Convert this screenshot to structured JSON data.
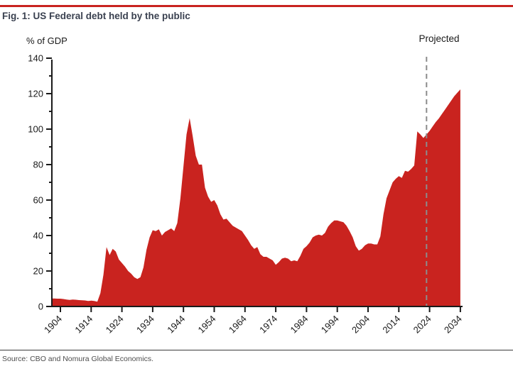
{
  "page": {
    "title": "Fig. 1: US Federal debt held by the public",
    "source": "Source: CBO and Nomura Global Economics.",
    "accent_color": "#c9231f"
  },
  "chart_data": {
    "type": "area",
    "title": "Fig. 1: US Federal debt held by the public",
    "ylabel": "% of GDP",
    "xlabel": "",
    "annotation": "Projected",
    "projected_line_year": 2023,
    "series_name": "US federal debt held by the public (% of GDP)",
    "fill_color": "#c9231f",
    "grid": false,
    "legend_position": "none",
    "ylim": [
      0,
      140
    ],
    "ytick_step": 20,
    "ytick_minor_step": 10,
    "xticks": [
      1904,
      1914,
      1924,
      1934,
      1944,
      1954,
      1964,
      1974,
      1984,
      1994,
      2004,
      2014,
      2024,
      2034
    ],
    "points": [
      [
        1901,
        4.5
      ],
      [
        1902,
        4.5
      ],
      [
        1903,
        4.4
      ],
      [
        1904,
        4.4
      ],
      [
        1905,
        4.2
      ],
      [
        1906,
        3.9
      ],
      [
        1907,
        3.7
      ],
      [
        1908,
        3.9
      ],
      [
        1909,
        3.8
      ],
      [
        1910,
        3.6
      ],
      [
        1911,
        3.5
      ],
      [
        1912,
        3.4
      ],
      [
        1913,
        3.1
      ],
      [
        1914,
        3.3
      ],
      [
        1915,
        3.1
      ],
      [
        1916,
        2.7
      ],
      [
        1917,
        7.5
      ],
      [
        1918,
        18.0
      ],
      [
        1919,
        33.5
      ],
      [
        1920,
        29.0
      ],
      [
        1921,
        32.5
      ],
      [
        1922,
        31.0
      ],
      [
        1923,
        26.5
      ],
      [
        1924,
        24.5
      ],
      [
        1925,
        22.5
      ],
      [
        1926,
        20.0
      ],
      [
        1927,
        18.5
      ],
      [
        1928,
        16.5
      ],
      [
        1929,
        15.5
      ],
      [
        1930,
        16.5
      ],
      [
        1931,
        22.0
      ],
      [
        1932,
        32.0
      ],
      [
        1933,
        39.0
      ],
      [
        1934,
        43.0
      ],
      [
        1935,
        42.5
      ],
      [
        1936,
        43.5
      ],
      [
        1937,
        40.0
      ],
      [
        1938,
        42.0
      ],
      [
        1939,
        43.0
      ],
      [
        1940,
        44.0
      ],
      [
        1941,
        42.5
      ],
      [
        1942,
        47.0
      ],
      [
        1943,
        61.0
      ],
      [
        1944,
        79.0
      ],
      [
        1945,
        97.0
      ],
      [
        1946,
        106.2
      ],
      [
        1947,
        96.0
      ],
      [
        1948,
        85.0
      ],
      [
        1949,
        80.0
      ],
      [
        1950,
        80.0
      ],
      [
        1951,
        67.0
      ],
      [
        1952,
        62.0
      ],
      [
        1953,
        59.0
      ],
      [
        1954,
        60.0
      ],
      [
        1955,
        57.0
      ],
      [
        1956,
        52.0
      ],
      [
        1957,
        49.0
      ],
      [
        1958,
        49.5
      ],
      [
        1959,
        47.5
      ],
      [
        1960,
        45.5
      ],
      [
        1961,
        44.5
      ],
      [
        1962,
        43.5
      ],
      [
        1963,
        42.5
      ],
      [
        1964,
        40.0
      ],
      [
        1965,
        37.5
      ],
      [
        1966,
        34.5
      ],
      [
        1967,
        32.5
      ],
      [
        1968,
        33.5
      ],
      [
        1969,
        29.5
      ],
      [
        1970,
        28.0
      ],
      [
        1971,
        28.0
      ],
      [
        1972,
        27.0
      ],
      [
        1973,
        26.0
      ],
      [
        1974,
        23.5
      ],
      [
        1975,
        25.0
      ],
      [
        1976,
        27.0
      ],
      [
        1977,
        27.5
      ],
      [
        1978,
        27.0
      ],
      [
        1979,
        25.5
      ],
      [
        1980,
        26.0
      ],
      [
        1981,
        25.5
      ],
      [
        1982,
        28.5
      ],
      [
        1983,
        32.5
      ],
      [
        1984,
        34.0
      ],
      [
        1985,
        36.0
      ],
      [
        1986,
        39.0
      ],
      [
        1987,
        40.0
      ],
      [
        1988,
        40.5
      ],
      [
        1989,
        40.0
      ],
      [
        1990,
        41.5
      ],
      [
        1991,
        45.0
      ],
      [
        1992,
        47.0
      ],
      [
        1993,
        48.5
      ],
      [
        1994,
        48.5
      ],
      [
        1995,
        48.0
      ],
      [
        1996,
        47.5
      ],
      [
        1997,
        45.5
      ],
      [
        1998,
        42.5
      ],
      [
        1999,
        39.0
      ],
      [
        2000,
        34.0
      ],
      [
        2001,
        31.5
      ],
      [
        2002,
        32.5
      ],
      [
        2003,
        34.5
      ],
      [
        2004,
        35.5
      ],
      [
        2005,
        35.5
      ],
      [
        2006,
        35.0
      ],
      [
        2007,
        35.0
      ],
      [
        2008,
        39.5
      ],
      [
        2009,
        52.0
      ],
      [
        2010,
        61.0
      ],
      [
        2011,
        65.5
      ],
      [
        2012,
        70.0
      ],
      [
        2013,
        72.0
      ],
      [
        2014,
        73.5
      ],
      [
        2015,
        72.5
      ],
      [
        2016,
        76.5
      ],
      [
        2017,
        76.0
      ],
      [
        2018,
        77.5
      ],
      [
        2019,
        79.5
      ],
      [
        2020,
        98.7
      ],
      [
        2021,
        97.0
      ],
      [
        2022,
        95.0
      ],
      [
        2023,
        97.0
      ],
      [
        2024,
        99.0
      ],
      [
        2025,
        101.5
      ],
      [
        2026,
        104.0
      ],
      [
        2027,
        106.0
      ],
      [
        2028,
        108.5
      ],
      [
        2029,
        111.0
      ],
      [
        2030,
        113.5
      ],
      [
        2031,
        116.0
      ],
      [
        2032,
        118.5
      ],
      [
        2033,
        120.5
      ],
      [
        2034,
        122.4
      ]
    ]
  }
}
